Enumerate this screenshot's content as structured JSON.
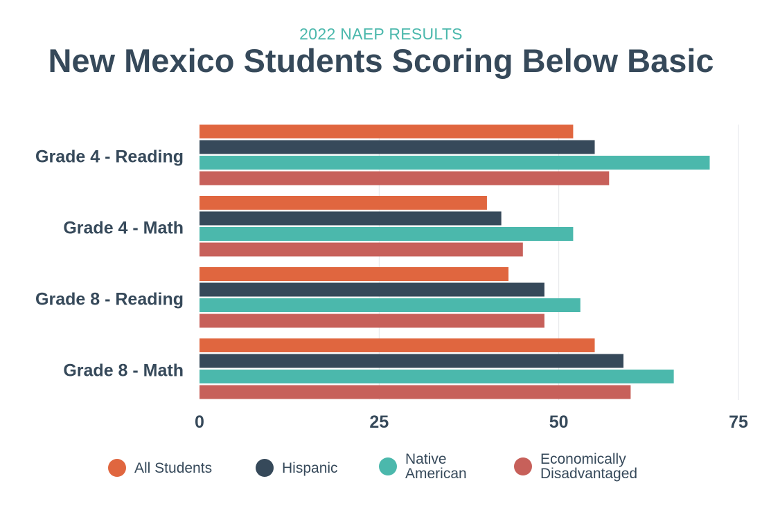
{
  "subtitle": "2022 NAEP RESULTS",
  "title": "New Mexico Students Scoring Below Basic",
  "chart_data": {
    "type": "bar",
    "orientation": "horizontal",
    "categories": [
      "Grade 4 - Reading",
      "Grade 4 - Math",
      "Grade 8 - Reading",
      "Grade 8 - Math"
    ],
    "series": [
      {
        "name": "All Students",
        "color": "#e0663f",
        "values": [
          52,
          40,
          43,
          55
        ]
      },
      {
        "name": "Hispanic",
        "color": "#36495a",
        "values": [
          55,
          42,
          48,
          59
        ]
      },
      {
        "name": "Native American",
        "color": "#4bb8ac",
        "values": [
          71,
          52,
          53,
          66
        ]
      },
      {
        "name": "Economically Disadvantaged",
        "color": "#c7605a",
        "values": [
          57,
          45,
          48,
          60
        ]
      }
    ],
    "xlim": [
      0,
      75
    ],
    "x_ticks": [
      0,
      25,
      50,
      75
    ],
    "x_tick_labels": [
      "0",
      "25",
      "50",
      "75"
    ],
    "grid": true,
    "legend_position": "bottom"
  },
  "legend": [
    {
      "label": "All Students",
      "color": "#e0663f"
    },
    {
      "label": "Hispanic",
      "color": "#36495a"
    },
    {
      "label": "Native\nAmerican",
      "color": "#4bb8ac"
    },
    {
      "label": "Economically\nDisadvantaged",
      "color": "#c7605a"
    }
  ]
}
